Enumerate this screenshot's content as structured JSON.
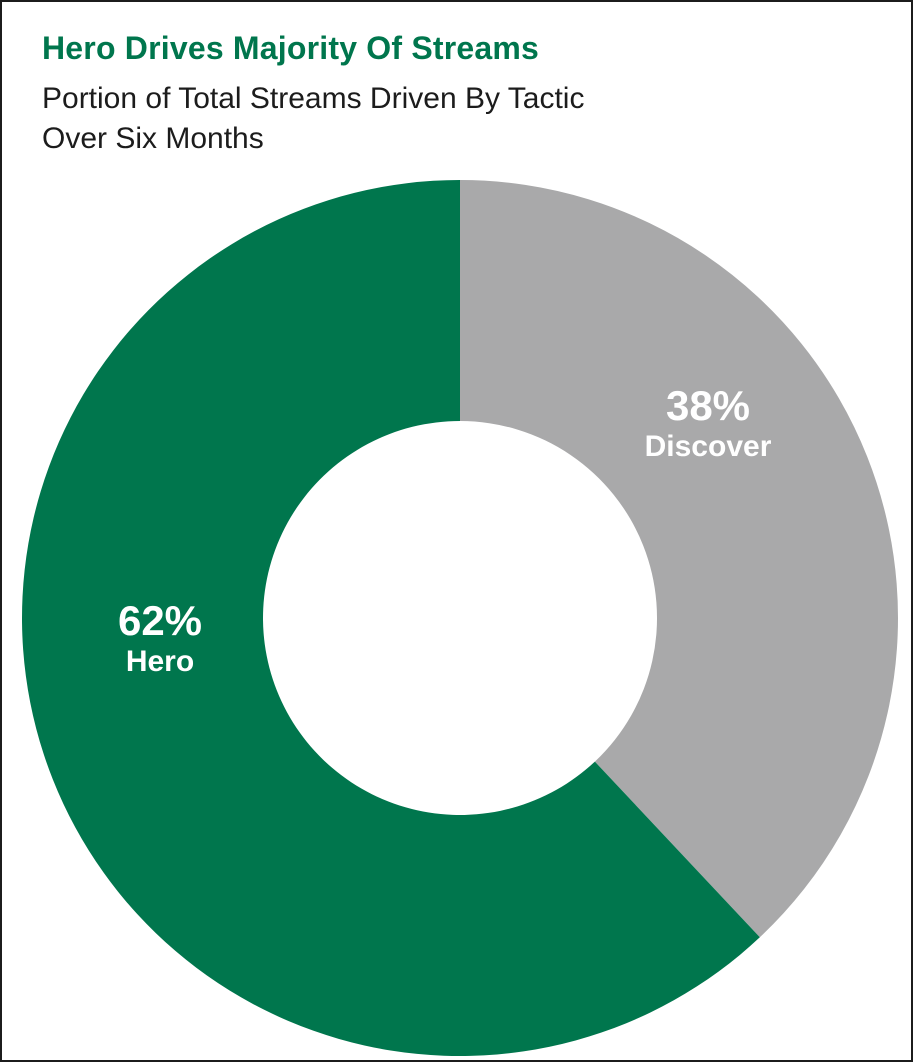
{
  "chart_data": {
    "type": "pie",
    "subtype": "donut",
    "title": "Hero Drives Majority Of Streams",
    "subtitle": "Portion of Total Streams Driven By Tactic Over Six Months",
    "subtitle_lines": [
      "Portion of Total Streams Driven By Tactic",
      "Over Six Months"
    ],
    "start_angle_deg": 0,
    "direction": "clockwise",
    "hole_ratio": 0.45,
    "legend": "none",
    "slices": [
      {
        "label": "Discover",
        "value": 38,
        "pct_label": "38%",
        "color": "#a9a9aa"
      },
      {
        "label": "Hero",
        "value": 62,
        "pct_label": "62%",
        "color": "#00764d"
      }
    ],
    "slice_label_color": "#ffffff"
  },
  "style": {
    "title_color": "#00764d",
    "subtitle_color": "#1c1c1c",
    "border_color": "#1c1c1c",
    "background": "#ffffff"
  }
}
